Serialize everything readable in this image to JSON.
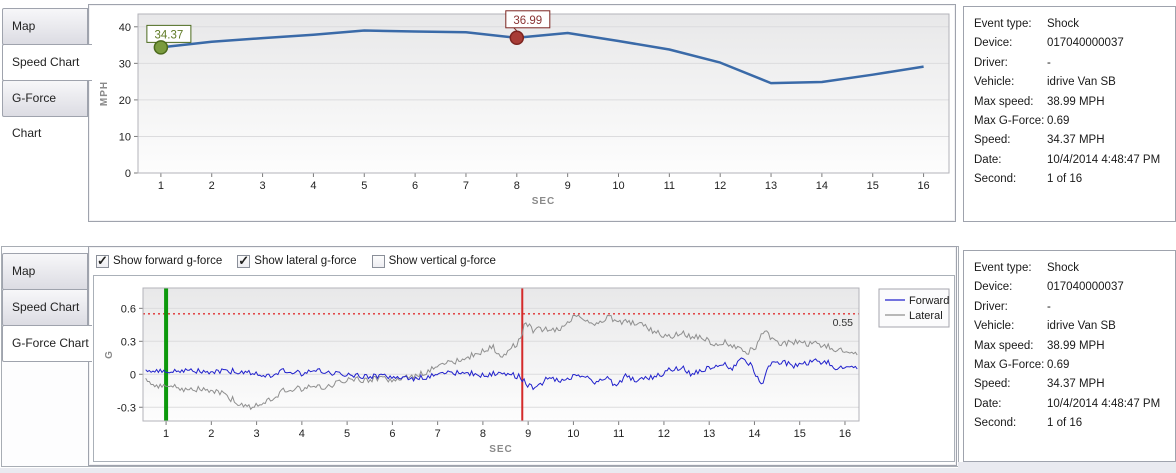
{
  "tabs": [
    "Map",
    "Speed Chart",
    "G-Force Chart"
  ],
  "top_section": {
    "selected_tab": "Speed Chart"
  },
  "bottom_section": {
    "selected_tab": "G-Force Chart",
    "checkboxes": [
      {
        "label": "Show forward g-force",
        "checked": true
      },
      {
        "label": "Show lateral g-force",
        "checked": true
      },
      {
        "label": "Show vertical g-force",
        "checked": false
      }
    ]
  },
  "info": {
    "rows": [
      {
        "label": "Event type:",
        "value": "Shock"
      },
      {
        "label": "Device:",
        "value": "017040000037"
      },
      {
        "label": "Driver:",
        "value": "-"
      },
      {
        "label": "Vehicle:",
        "value": "idrive Van SB"
      },
      {
        "label": "Max speed:",
        "value": "38.99 MPH"
      },
      {
        "label": "Max G-Force:",
        "value": "0.69"
      },
      {
        "label": "Speed:",
        "value": "34.37 MPH"
      },
      {
        "label": "Date:",
        "value": "10/4/2014 4:48:47 PM"
      },
      {
        "label": "Second:",
        "value": "1 of 16"
      }
    ]
  },
  "colors": {
    "speed_line": "#3a6aa8",
    "forward": "#2222cc",
    "lateral": "#8f8f8f",
    "marker_green_fill": "#7a9b3e",
    "marker_green_stroke": "#4c6a1d",
    "marker_red_fill": "#a83c36",
    "marker_red_stroke": "#7c2420",
    "vline_green": "#0c990c",
    "vline_red": "#d42a2a",
    "threshold_red": "#e03030",
    "grid": "#dcdcde",
    "plot_border": "#b3b3ba"
  },
  "chart_data": [
    {
      "type": "line",
      "title": "Speed Chart",
      "xlabel": "SEC",
      "ylabel": "MPH",
      "x": [
        1,
        2,
        3,
        4,
        5,
        6,
        7,
        8,
        9,
        10,
        11,
        12,
        13,
        14,
        15,
        16
      ],
      "values": [
        34.37,
        35.9,
        36.9,
        37.8,
        38.99,
        38.7,
        38.5,
        36.99,
        38.3,
        36.1,
        33.8,
        30.2,
        24.6,
        24.9,
        26.9,
        29.1
      ],
      "xticks": [
        1,
        2,
        3,
        4,
        5,
        6,
        7,
        8,
        9,
        10,
        11,
        12,
        13,
        14,
        15,
        16
      ],
      "yticks": [
        0,
        10,
        20,
        30,
        40
      ],
      "xlim": [
        0.55,
        16.5
      ],
      "ylim": [
        0,
        43.5
      ],
      "grid": "horizontal",
      "line_color": "#3a6aa8",
      "markers": [
        {
          "x": 1,
          "y": 34.37,
          "label": "34.37",
          "fill": "#7a9b3e",
          "stroke": "#4c6a1d",
          "label_color": "#5f7a24"
        },
        {
          "x": 8,
          "y": 36.99,
          "label": "36.99",
          "fill": "#a83c36",
          "stroke": "#7c2420",
          "label_color": "#8b3434"
        }
      ]
    },
    {
      "type": "line",
      "title": "G-Force Chart",
      "xlabel": "SEC",
      "ylabel": "G",
      "xlim": [
        0.49,
        16.31
      ],
      "ylim": [
        -0.425,
        0.785
      ],
      "xticks": [
        1,
        2,
        3,
        4,
        5,
        6,
        7,
        8,
        9,
        10,
        11,
        12,
        13,
        14,
        15,
        16
      ],
      "yticks": [
        -0.3,
        0,
        0.3,
        0.6
      ],
      "grid": "horizontal",
      "sample_step": 0.04,
      "noise_seed": 20141004,
      "legend": {
        "position": "right",
        "entries": [
          "Forward",
          "Lateral"
        ]
      },
      "series": [
        {
          "name": "Forward",
          "color": "#2222cc",
          "noise": 0.025,
          "keyframes": [
            [
              0.55,
              0.03
            ],
            [
              1.0,
              0.02
            ],
            [
              1.5,
              0.04
            ],
            [
              2.0,
              0.02
            ],
            [
              2.5,
              0.03
            ],
            [
              3.0,
              0.01
            ],
            [
              3.3,
              -0.02
            ],
            [
              3.6,
              0.03
            ],
            [
              4.0,
              0.01
            ],
            [
              4.4,
              0.03
            ],
            [
              4.8,
              0.0
            ],
            [
              5.2,
              -0.01
            ],
            [
              5.6,
              -0.02
            ],
            [
              6.0,
              -0.02
            ],
            [
              6.4,
              -0.04
            ],
            [
              6.8,
              -0.02
            ],
            [
              7.2,
              0.01
            ],
            [
              7.6,
              0.02
            ],
            [
              8.0,
              -0.01
            ],
            [
              8.4,
              0.02
            ],
            [
              8.8,
              -0.02
            ],
            [
              9.0,
              -0.1
            ],
            [
              9.2,
              -0.13
            ],
            [
              9.45,
              -0.02
            ],
            [
              9.7,
              -0.07
            ],
            [
              9.95,
              -0.03
            ],
            [
              10.2,
              0.0
            ],
            [
              10.45,
              -0.07
            ],
            [
              10.7,
              -0.03
            ],
            [
              10.95,
              -0.1
            ],
            [
              11.15,
              -0.02
            ],
            [
              11.4,
              -0.06
            ],
            [
              11.65,
              -0.04
            ],
            [
              11.9,
              -0.01
            ],
            [
              12.15,
              0.05
            ],
            [
              12.4,
              0.06
            ],
            [
              12.6,
              0.0
            ],
            [
              12.85,
              0.03
            ],
            [
              13.05,
              0.07
            ],
            [
              13.3,
              0.11
            ],
            [
              13.5,
              0.05
            ],
            [
              13.75,
              0.15
            ],
            [
              13.95,
              0.07
            ],
            [
              14.15,
              -0.1
            ],
            [
              14.35,
              0.09
            ],
            [
              14.6,
              0.12
            ],
            [
              14.85,
              0.08
            ],
            [
              15.1,
              0.09
            ],
            [
              15.35,
              0.12
            ],
            [
              15.6,
              0.11
            ],
            [
              15.85,
              0.05
            ],
            [
              16.1,
              0.08
            ],
            [
              16.3,
              0.07
            ]
          ]
        },
        {
          "name": "Lateral",
          "color": "#8f8f8f",
          "noise": 0.028,
          "keyframes": [
            [
              0.55,
              -0.05
            ],
            [
              0.8,
              -0.12
            ],
            [
              1.1,
              -0.1
            ],
            [
              1.4,
              -0.14
            ],
            [
              1.8,
              -0.13
            ],
            [
              2.2,
              -0.17
            ],
            [
              2.6,
              -0.26
            ],
            [
              2.85,
              -0.3
            ],
            [
              3.1,
              -0.26
            ],
            [
              3.4,
              -0.22
            ],
            [
              3.6,
              -0.15
            ],
            [
              3.9,
              -0.13
            ],
            [
              4.2,
              -0.12
            ],
            [
              4.5,
              -0.12
            ],
            [
              4.8,
              -0.08
            ],
            [
              5.1,
              -0.04
            ],
            [
              5.4,
              -0.05
            ],
            [
              5.7,
              -0.04
            ],
            [
              6.0,
              -0.05
            ],
            [
              6.3,
              -0.03
            ],
            [
              6.6,
              0.0
            ],
            [
              6.9,
              0.05
            ],
            [
              7.2,
              0.1
            ],
            [
              7.5,
              0.13
            ],
            [
              7.8,
              0.18
            ],
            [
              8.0,
              0.21
            ],
            [
              8.2,
              0.26
            ],
            [
              8.4,
              0.16
            ],
            [
              8.6,
              0.23
            ],
            [
              8.8,
              0.3
            ],
            [
              8.95,
              0.48
            ],
            [
              9.1,
              0.4
            ],
            [
              9.4,
              0.41
            ],
            [
              9.7,
              0.4
            ],
            [
              9.95,
              0.5
            ],
            [
              10.15,
              0.54
            ],
            [
              10.35,
              0.46
            ],
            [
              10.6,
              0.48
            ],
            [
              10.8,
              0.52
            ],
            [
              11.0,
              0.48
            ],
            [
              11.2,
              0.47
            ],
            [
              11.45,
              0.46
            ],
            [
              11.7,
              0.4
            ],
            [
              11.9,
              0.37
            ],
            [
              12.1,
              0.34
            ],
            [
              12.35,
              0.38
            ],
            [
              12.6,
              0.34
            ],
            [
              12.85,
              0.33
            ],
            [
              13.1,
              0.28
            ],
            [
              13.35,
              0.3
            ],
            [
              13.6,
              0.24
            ],
            [
              13.85,
              0.2
            ],
            [
              14.05,
              0.26
            ],
            [
              14.2,
              0.4
            ],
            [
              14.4,
              0.31
            ],
            [
              14.65,
              0.28
            ],
            [
              14.9,
              0.3
            ],
            [
              15.15,
              0.27
            ],
            [
              15.4,
              0.28
            ],
            [
              15.7,
              0.24
            ],
            [
              16.0,
              0.21
            ],
            [
              16.3,
              0.2
            ]
          ]
        }
      ],
      "vlines": [
        {
          "x": 1,
          "color": "#0c990c",
          "width": 4
        },
        {
          "x": 8.87,
          "color": "#d42a2a",
          "width": 2
        }
      ],
      "hlines": [
        {
          "y": 0.55,
          "color": "#e03030",
          "style": "dotted",
          "label": "0.55",
          "label_color": "#333333"
        }
      ]
    }
  ]
}
